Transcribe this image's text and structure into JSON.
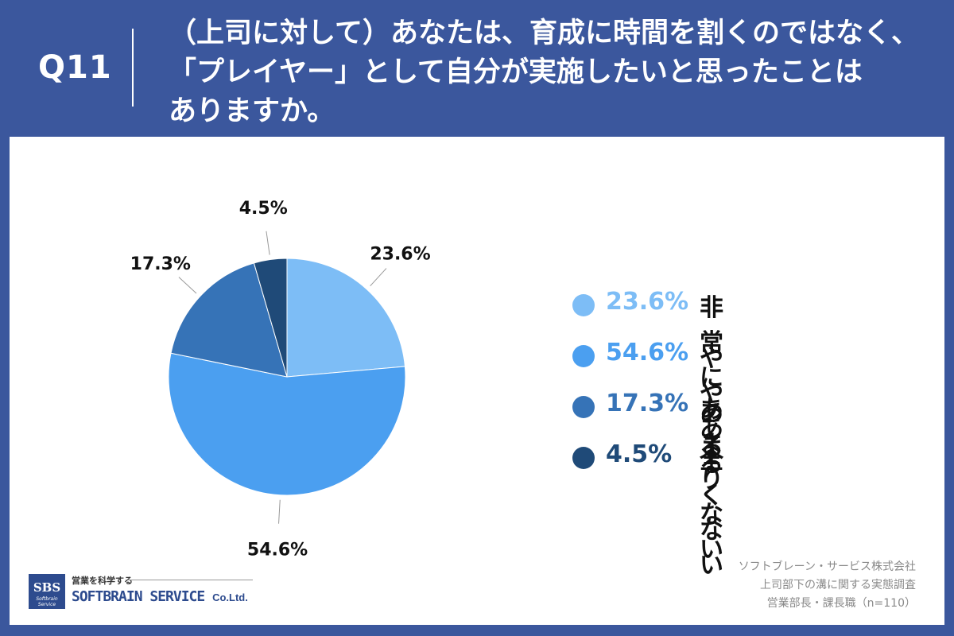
{
  "header": {
    "question_number": "Q11",
    "question_text": "（上司に対して）あなたは、育成に時間を割くのではなく、\n「プレイヤー」として自分が実施したいと思ったことは\nありますか。"
  },
  "chart_data": {
    "type": "pie",
    "title": "",
    "start_angle_deg": 0,
    "direction": "clockwise",
    "slices": [
      {
        "label": "非常にある",
        "value": 23.6,
        "display": "23.6%",
        "color": "#7dbdf6"
      },
      {
        "label": "ややある",
        "value": 54.6,
        "display": "54.6%",
        "color": "#4b9ff0"
      },
      {
        "label": "あまりない",
        "value": 17.3,
        "display": "17.3%",
        "color": "#3673b7"
      },
      {
        "label": "全くない",
        "value": 4.5,
        "display": "4.5%",
        "color": "#1f4a78"
      }
    ]
  },
  "legend": {
    "items": [
      {
        "pct": "23.6%",
        "label": "非常にある",
        "color": "#7dbdf6",
        "pct_color": "#7dbdf6"
      },
      {
        "pct": "54.6%",
        "label": "ややある",
        "color": "#4b9ff0",
        "pct_color": "#4b9ff0"
      },
      {
        "pct": "17.3%",
        "label": "あまりない",
        "color": "#3673b7",
        "pct_color": "#3673b7"
      },
      {
        "pct": "4.5%",
        "label": "全くない",
        "color": "#1f4a78",
        "pct_color": "#1f4a78"
      }
    ]
  },
  "source": {
    "line1": "ソフトブレーン・サービス株式会社",
    "line2": "上司部下の溝に関する実態調査",
    "line3": "営業部長・課長職（n=110）"
  },
  "logo": {
    "box_text": "SBS",
    "box_subtext": "Softbrain Service",
    "tagline": "営業を科学する",
    "name": "SOFTBRAIN SERVICE",
    "suffix": "Co.Ltd."
  },
  "colors": {
    "header_bg": "#3b579d",
    "panel_bg": "#ffffff",
    "leader_line": "#999999"
  }
}
